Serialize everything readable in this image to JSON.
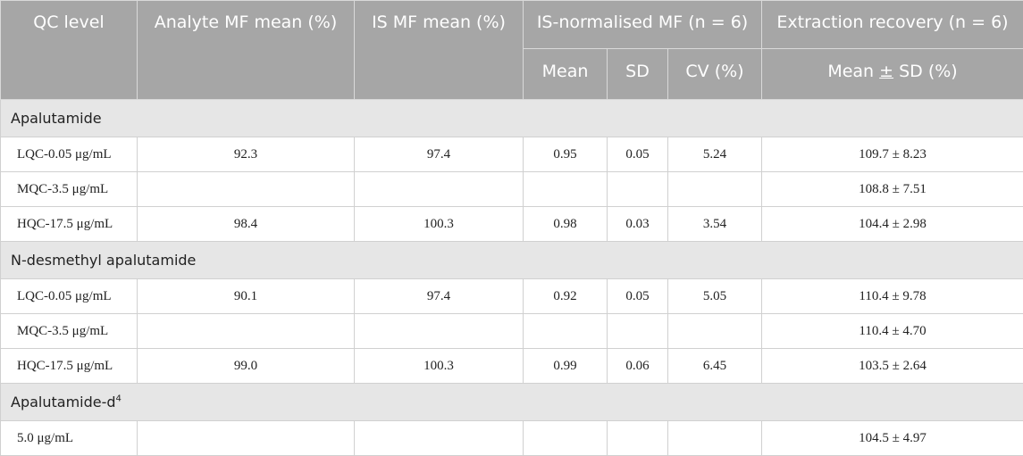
{
  "header": {
    "qc_level": "QC level",
    "analyte_mf": "Analyte MF mean (%)",
    "is_mf": "IS MF mean (%)",
    "is_normalised": "IS-normalised MF (n = 6)",
    "extraction_recovery": "Extraction recovery (n = 6)",
    "mean": "Mean",
    "sd": "SD",
    "cv": "CV (%)",
    "mean_sd_prefix": "Mean ",
    "mean_sd_pm": "±",
    "mean_sd_suffix": " SD (%)"
  },
  "sections": [
    {
      "title": "Apalutamide",
      "sup": "",
      "rows": [
        {
          "qc": "LQC-0.05 μg/mL",
          "analyte": "92.3",
          "is": "97.4",
          "mean": "0.95",
          "sd": "0.05",
          "cv": "5.24",
          "recovery": "109.7 ± 8.23"
        },
        {
          "qc": "MQC-3.5 μg/mL",
          "analyte": "",
          "is": "",
          "mean": "",
          "sd": "",
          "cv": "",
          "recovery": "108.8 ± 7.51"
        },
        {
          "qc": "HQC-17.5 μg/mL",
          "analyte": "98.4",
          "is": "100.3",
          "mean": "0.98",
          "sd": "0.03",
          "cv": "3.54",
          "recovery": "104.4 ± 2.98"
        }
      ]
    },
    {
      "title": "N-desmethyl apalutamide",
      "sup": "",
      "rows": [
        {
          "qc": "LQC-0.05 μg/mL",
          "analyte": "90.1",
          "is": "97.4",
          "mean": "0.92",
          "sd": "0.05",
          "cv": "5.05",
          "recovery": "110.4 ± 9.78"
        },
        {
          "qc": "MQC-3.5 μg/mL",
          "analyte": "",
          "is": "",
          "mean": "",
          "sd": "",
          "cv": "",
          "recovery": "110.4 ± 4.70"
        },
        {
          "qc": "HQC-17.5 μg/mL",
          "analyte": "99.0",
          "is": "100.3",
          "mean": "0.99",
          "sd": "0.06",
          "cv": "6.45",
          "recovery": "103.5 ± 2.64"
        }
      ]
    },
    {
      "title": "Apalutamide-d",
      "sup": "4",
      "rows": [
        {
          "qc": "5.0 μg/mL",
          "analyte": "",
          "is": "",
          "mean": "",
          "sd": "",
          "cv": "",
          "recovery": "104.5 ± 4.97"
        }
      ]
    }
  ]
}
